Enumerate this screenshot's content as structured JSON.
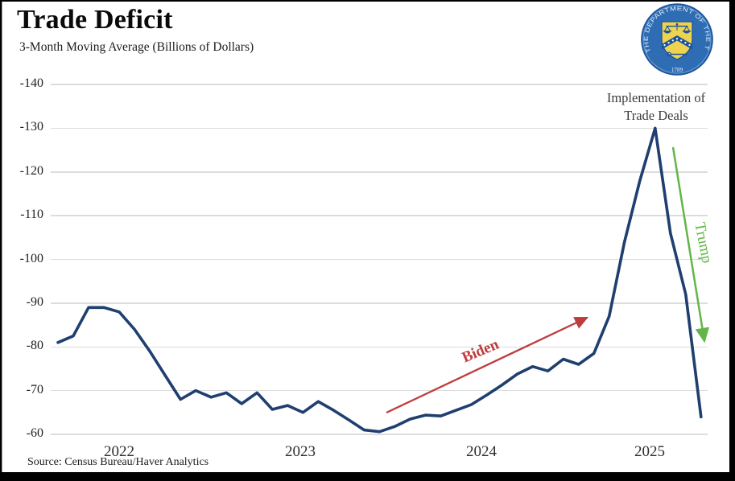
{
  "header": {
    "title": "Trade Deficit",
    "subtitle": "3-Month Moving Average (Billions of Dollars)"
  },
  "logo": {
    "name": "us-treasury-seal",
    "ring_text": "THE DEPARTMENT OF THE TREASURY",
    "year": "1789",
    "blue": "#2e6db4",
    "dark_blue": "#1c539c",
    "yellow": "#eed34f"
  },
  "annotations": {
    "implementation_line1": "Implementation of",
    "implementation_line2": "Trade Deals",
    "biden_label": "Biden",
    "trump_label": "Trump"
  },
  "source": "Source: Census Bureau/Haver Analytics",
  "colors": {
    "line": "#1f3f70",
    "biden_red": "#bf3c3c",
    "trump_green": "#63b548",
    "grid": "#dcdcdc",
    "text": "#1f1f1f"
  },
  "chart_data": {
    "type": "line",
    "title": "Trade Deficit",
    "subtitle": "3-Month Moving Average (Billions of Dollars)",
    "series_name": "Trade deficit, 3-month moving average (billions of dollars)",
    "x": [
      "2021-09",
      "2021-10",
      "2021-11",
      "2021-12",
      "2022-01",
      "2022-02",
      "2022-03",
      "2022-04",
      "2022-05",
      "2022-06",
      "2022-07",
      "2022-08",
      "2022-09",
      "2022-10",
      "2022-11",
      "2022-12",
      "2023-01",
      "2023-02",
      "2023-03",
      "2023-04",
      "2023-05",
      "2023-06",
      "2023-07",
      "2023-08",
      "2023-09",
      "2023-10",
      "2023-11",
      "2023-12",
      "2024-01",
      "2024-02",
      "2024-03",
      "2024-04",
      "2024-05",
      "2024-06",
      "2024-07",
      "2024-08",
      "2024-09",
      "2024-10",
      "2024-11",
      "2024-12",
      "2025-01",
      "2025-02",
      "2025-03"
    ],
    "values": [
      -81,
      -82.5,
      -89,
      -89,
      -88,
      -84,
      -79,
      -73.5,
      -68,
      -70,
      -68.5,
      -69.5,
      -67,
      -69.5,
      -65.7,
      -66.6,
      -65,
      -67.5,
      -65.5,
      -63.3,
      -61,
      -60.6,
      -61.8,
      -63.5,
      -64.4,
      -64.2,
      -65.5,
      -66.8,
      -69,
      -71.3,
      -73.8,
      -75.5,
      -74.5,
      -77.2,
      -76,
      -78.5,
      -87,
      -104,
      -118,
      -130,
      -106,
      -92,
      -64
    ],
    "ylim": [
      -140,
      -60
    ],
    "yticks": [
      -140,
      -130,
      -120,
      -110,
      -100,
      -90,
      -80,
      -70,
      -60
    ],
    "ytick_labels": [
      "-140",
      "-130",
      "-120",
      "-110",
      "-100",
      "-90",
      "-80",
      "-70",
      "-60"
    ],
    "xtick_labels": [
      "2022",
      "2023",
      "2024",
      "2025"
    ],
    "grid": "horizontal-only",
    "y_axis_inverted_note": "larger deficits plotted higher (axis runs -140 top to -60 bottom)",
    "peak_annotation_value": -130,
    "legend_position": "none"
  }
}
